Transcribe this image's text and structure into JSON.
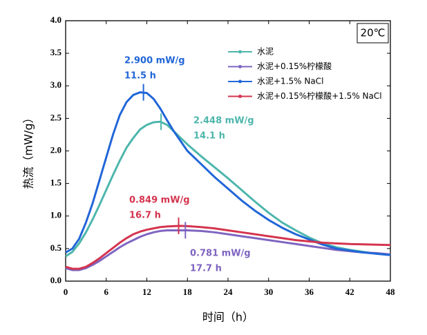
{
  "chart_data": {
    "type": "line",
    "x_label": "时间（h）",
    "y_label": "热流（mW/g）",
    "condition": "20℃",
    "x": [
      0,
      1,
      2,
      3,
      4,
      5,
      6,
      7,
      8,
      9,
      10,
      11,
      12,
      13,
      14,
      15,
      16,
      17,
      18,
      20,
      22,
      24,
      26,
      28,
      30,
      32,
      34,
      36,
      38,
      40,
      42,
      44,
      46,
      48
    ],
    "series": [
      {
        "name": "水泥",
        "color": "#4db6ac",
        "values": [
          0.38,
          0.45,
          0.58,
          0.75,
          0.95,
          1.17,
          1.4,
          1.63,
          1.85,
          2.05,
          2.2,
          2.33,
          2.4,
          2.44,
          2.448,
          2.4,
          2.3,
          2.2,
          2.1,
          1.92,
          1.75,
          1.58,
          1.4,
          1.22,
          1.05,
          0.9,
          0.78,
          0.67,
          0.58,
          0.52,
          0.48,
          0.45,
          0.42,
          0.4
        ]
      },
      {
        "name": "水泥+0.15%柠檬酸",
        "color": "#7e64c0",
        "values": [
          0.2,
          0.17,
          0.17,
          0.2,
          0.25,
          0.31,
          0.38,
          0.45,
          0.52,
          0.58,
          0.63,
          0.68,
          0.72,
          0.75,
          0.77,
          0.78,
          0.78,
          0.78,
          0.78,
          0.77,
          0.75,
          0.72,
          0.69,
          0.66,
          0.63,
          0.6,
          0.57,
          0.54,
          0.51,
          0.48,
          0.46,
          0.44,
          0.43,
          0.41
        ]
      },
      {
        "name": "水泥+1.5% NaCl",
        "color": "#2166d8",
        "values": [
          0.44,
          0.5,
          0.65,
          0.9,
          1.2,
          1.55,
          1.9,
          2.25,
          2.55,
          2.75,
          2.86,
          2.9,
          2.89,
          2.8,
          2.65,
          2.47,
          2.3,
          2.15,
          2.0,
          1.8,
          1.6,
          1.42,
          1.24,
          1.08,
          0.94,
          0.82,
          0.72,
          0.64,
          0.56,
          0.5,
          0.47,
          0.44,
          0.42,
          0.4
        ]
      },
      {
        "name": "水泥+0.15%柠檬酸+1.5% NaCl",
        "color": "#d4344e",
        "values": [
          0.22,
          0.19,
          0.19,
          0.22,
          0.28,
          0.35,
          0.43,
          0.51,
          0.59,
          0.66,
          0.72,
          0.76,
          0.79,
          0.81,
          0.83,
          0.84,
          0.845,
          0.849,
          0.845,
          0.83,
          0.81,
          0.78,
          0.75,
          0.72,
          0.69,
          0.66,
          0.63,
          0.61,
          0.59,
          0.58,
          0.57,
          0.565,
          0.56,
          0.555
        ]
      }
    ],
    "annotations": [
      {
        "lines": [
          "2.900 mW/g",
          "11.5 h"
        ],
        "x": 11.5,
        "y": 2.9,
        "color": "#2166d8"
      },
      {
        "lines": [
          "2.448 mW/g",
          "14.1 h"
        ],
        "x": 14.1,
        "y": 2.448,
        "color": "#4db6ac"
      },
      {
        "lines": [
          "0.849 mW/g",
          "16.7 h"
        ],
        "x": 16.7,
        "y": 0.849,
        "color": "#d4344e"
      },
      {
        "lines": [
          "0.781 mW/g",
          "17.7 h"
        ],
        "x": 17.7,
        "y": 0.781,
        "color": "#7e64c0"
      }
    ],
    "xlim": [
      0,
      48
    ],
    "xticks": [
      0,
      6,
      12,
      18,
      24,
      30,
      36,
      42,
      48
    ],
    "ylim": [
      0,
      4
    ],
    "yticks": [
      {
        "value": 0,
        "label": "0.0"
      },
      {
        "value": 0.5,
        "label": "0.5"
      },
      {
        "value": 1,
        "label": "1.0"
      },
      {
        "value": 1.5,
        "label": "1.5"
      },
      {
        "value": 2,
        "label": "2.0"
      },
      {
        "value": 2.5,
        "label": "2.5"
      },
      {
        "value": 3,
        "label": "3.0"
      },
      {
        "value": 3.5,
        "label": "3.5"
      },
      {
        "value": 4,
        "label": "4.0"
      }
    ]
  }
}
